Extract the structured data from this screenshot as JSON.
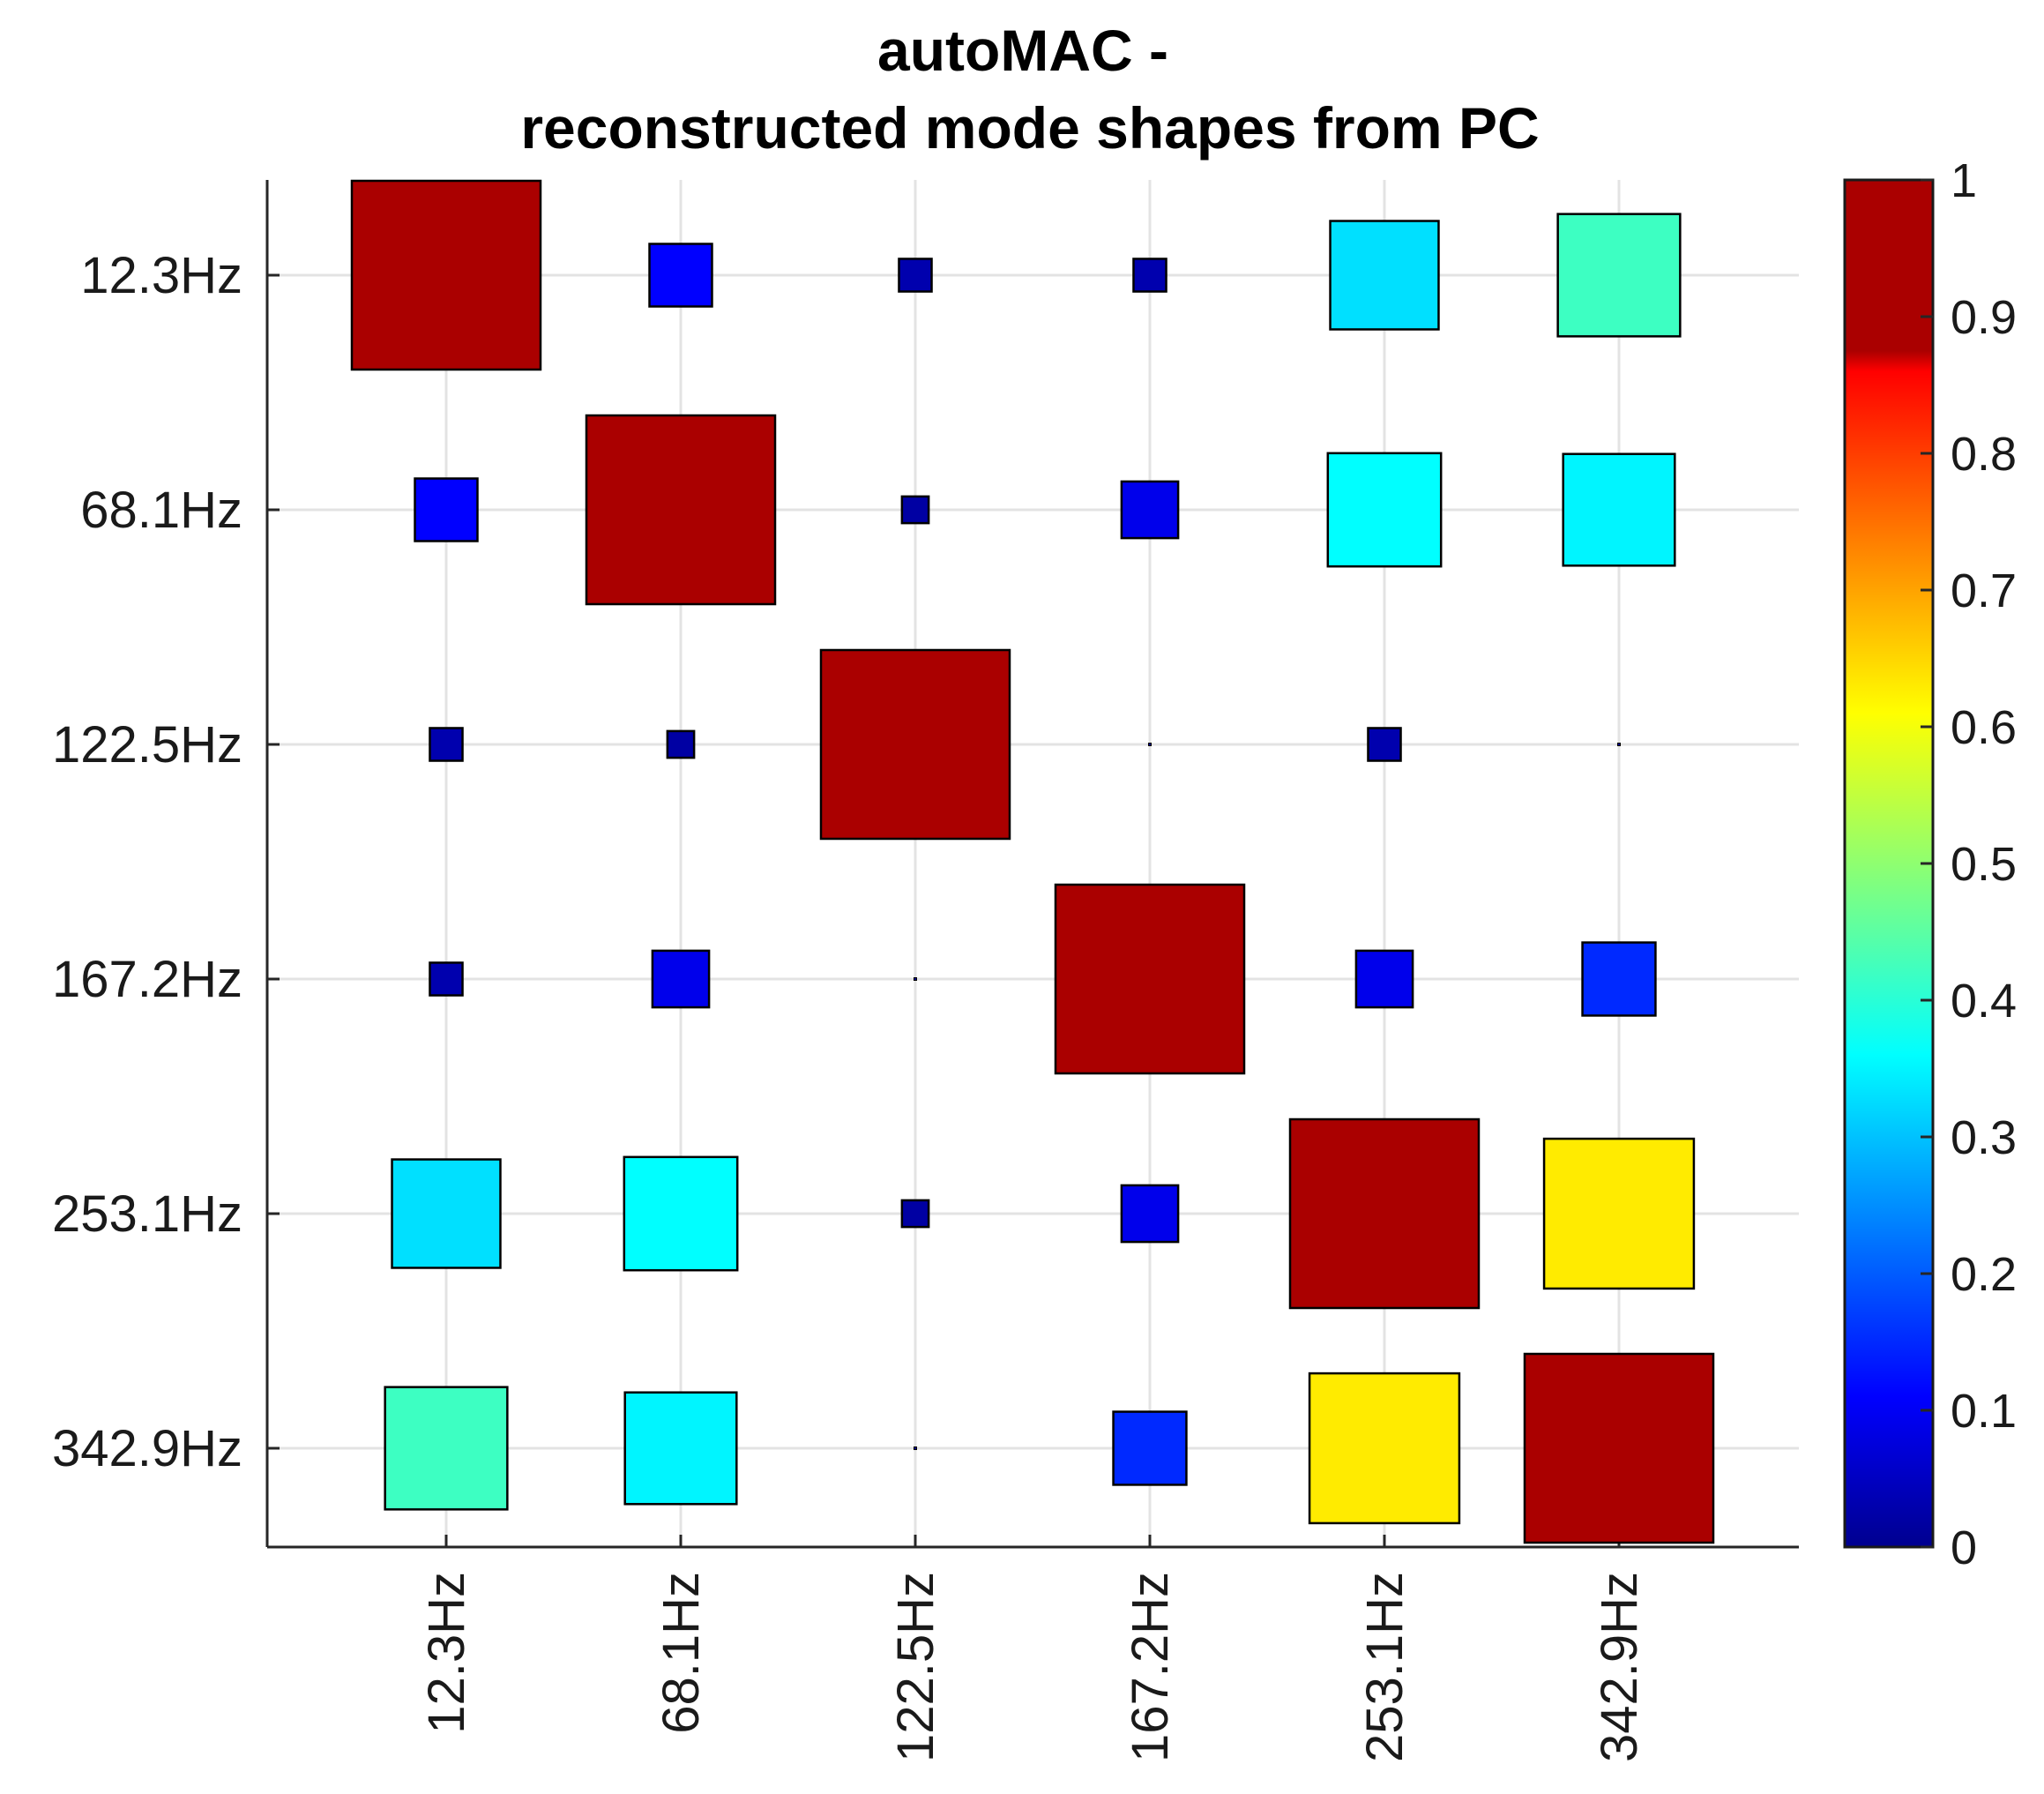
{
  "chart_data": {
    "type": "heatmap",
    "title": [
      "autoMAC -",
      "reconstructed mode shapes from PC"
    ],
    "xlabel": "",
    "ylabel": "",
    "x_categories": [
      "12.3Hz",
      "68.1Hz",
      "122.5Hz",
      "167.2Hz",
      "253.1Hz",
      "342.9Hz"
    ],
    "y_categories": [
      "12.3Hz",
      "68.1Hz",
      "122.5Hz",
      "167.2Hz",
      "253.1Hz",
      "342.9Hz"
    ],
    "values": [
      [
        1.0,
        0.11,
        0.03,
        0.03,
        0.33,
        0.42
      ],
      [
        0.11,
        1.0,
        0.02,
        0.09,
        0.36,
        0.35
      ],
      [
        0.03,
        0.02,
        1.0,
        0.0,
        0.03,
        0.0
      ],
      [
        0.03,
        0.09,
        0.0,
        1.0,
        0.09,
        0.15
      ],
      [
        0.33,
        0.36,
        0.02,
        0.09,
        1.0,
        0.63
      ],
      [
        0.42,
        0.35,
        0.0,
        0.15,
        0.63,
        1.0
      ]
    ],
    "marker": "square, side proportional to sqrt(value)",
    "colormap": "jet",
    "colorbar": {
      "range": [
        0,
        1
      ],
      "ticks": [
        "0",
        "0.1",
        "0.2",
        "0.3",
        "0.4",
        "0.5",
        "0.6",
        "0.7",
        "0.8",
        "0.9",
        "1"
      ],
      "placement": "right"
    },
    "grid": true
  }
}
